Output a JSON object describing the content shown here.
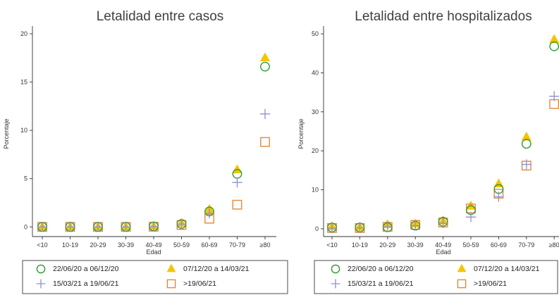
{
  "series_styles": {
    "s1": {
      "marker": "circle-open",
      "color": "#2e9a2e"
    },
    "s2": {
      "marker": "triangle-filled",
      "color": "#f5c400"
    },
    "s3": {
      "marker": "plus",
      "color": "#8f8fd6"
    },
    "s4": {
      "marker": "square-open",
      "color": "#e08a3c"
    }
  },
  "chart_data": [
    {
      "type": "scatter",
      "title": "Letalidad entre casos",
      "xlabel": "Edad",
      "ylabel": "Porcentaje",
      "categories": [
        "<10",
        "10-19",
        "20-29",
        "30-39",
        "40-49",
        "50-59",
        "60-69",
        "70-79",
        "≥80"
      ],
      "ylim": [
        -1,
        20.8
      ],
      "yticks": [
        0,
        5,
        10,
        15,
        20
      ],
      "grid": false,
      "legend_position": "bottom",
      "series": [
        {
          "name": "22/06/20 a 06/12/20",
          "key": "s1",
          "values": [
            0,
            0,
            0,
            0,
            0.05,
            0.3,
            1.6,
            5.5,
            16.6
          ]
        },
        {
          "name": "07/12/20 a 14/03/21",
          "key": "s2",
          "values": [
            0,
            0,
            0,
            0,
            0.05,
            0.35,
            1.8,
            5.9,
            17.5
          ]
        },
        {
          "name": "15/03/21 a 19/06/21",
          "key": "s3",
          "values": [
            0,
            0,
            0,
            0,
            0.04,
            0.3,
            1.4,
            4.6,
            11.7
          ]
        },
        {
          "name": ">19/06/21",
          "key": "s4",
          "values": [
            0,
            0,
            0,
            0,
            0.02,
            0.2,
            0.85,
            2.3,
            8.8
          ]
        }
      ]
    },
    {
      "type": "scatter",
      "title": "Letalidad entre hospitalizados",
      "xlabel": "Edad",
      "ylabel": "Porcentaje",
      "categories": [
        "<10",
        "10-19",
        "20-29",
        "30-39",
        "40-49",
        "50-59",
        "60-69",
        "70-79",
        "≥80"
      ],
      "ylim": [
        -2,
        52
      ],
      "yticks": [
        0,
        10,
        20,
        30,
        40,
        50
      ],
      "grid": false,
      "legend_position": "bottom",
      "series": [
        {
          "name": "22/06/20 a 06/12/20",
          "key": "s1",
          "values": [
            0.3,
            0.3,
            0.4,
            0.8,
            1.8,
            4.8,
            10.2,
            21.8,
            46.8
          ]
        },
        {
          "name": "07/12/20 a 14/03/21",
          "key": "s2",
          "values": [
            0.5,
            0.4,
            1.0,
            1.2,
            2.0,
            5.8,
            11.5,
            23.5,
            48.5
          ]
        },
        {
          "name": "15/03/21 a 19/06/21",
          "key": "s3",
          "values": [
            0.2,
            0.3,
            0.5,
            0.8,
            1.4,
            3.0,
            8.2,
            16.5,
            34.0
          ]
        },
        {
          "name": ">19/06/21",
          "key": "s4",
          "values": [
            0.2,
            0.2,
            0.5,
            1.0,
            1.6,
            5.2,
            9.0,
            16.2,
            32.0
          ]
        }
      ]
    }
  ]
}
